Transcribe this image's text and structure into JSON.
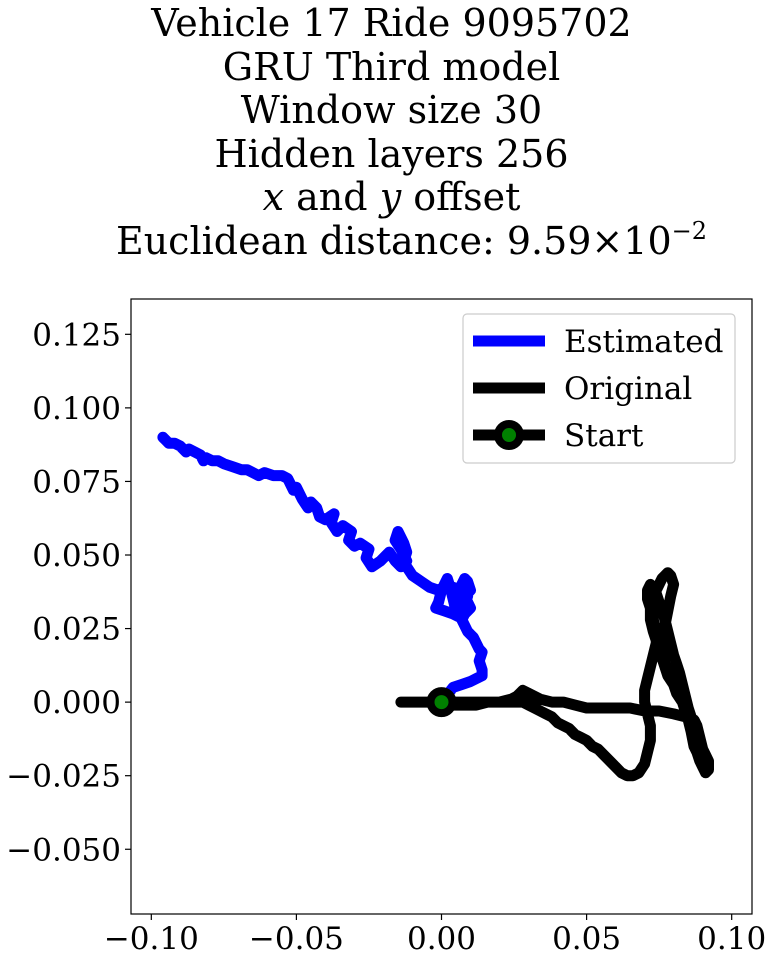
{
  "chart_data": {
    "type": "line",
    "title_lines": {
      "line1": "Vehicle 17 Ride 9095702",
      "line2": "GRU Third model",
      "line3": "Window size 30",
      "line4": "Hidden layers 256",
      "line5_var_x": "x",
      "line5_mid": " and ",
      "line5_var_y": "y",
      "line5_end": " offset",
      "line6_prefix": "Euclidean distance: 9.59×10",
      "line6_exp": "−2"
    },
    "xlabel": "",
    "ylabel": "",
    "xlim": [
      -0.107,
      0.107
    ],
    "ylim": [
      -0.072,
      0.137
    ],
    "xticks": [
      {
        "value": -0.1,
        "label": "−0.10"
      },
      {
        "value": -0.05,
        "label": "−0.05"
      },
      {
        "value": 0.0,
        "label": "0.00"
      },
      {
        "value": 0.05,
        "label": "0.05"
      },
      {
        "value": 0.1,
        "label": "0.10"
      }
    ],
    "yticks": [
      {
        "value": 0.125,
        "label": "0.125"
      },
      {
        "value": 0.1,
        "label": "0.100"
      },
      {
        "value": 0.075,
        "label": "0.075"
      },
      {
        "value": 0.05,
        "label": "0.050"
      },
      {
        "value": 0.025,
        "label": "0.025"
      },
      {
        "value": 0.0,
        "label": "0.000"
      },
      {
        "value": -0.025,
        "label": "−0.025"
      },
      {
        "value": -0.05,
        "label": "−0.050"
      }
    ],
    "grid": false,
    "legend_position": "top-right",
    "legend": [
      {
        "label": "Estimated",
        "color": "#0000ff",
        "marker": false
      },
      {
        "label": "Original",
        "color": "#000000",
        "marker": false
      },
      {
        "label": "Start",
        "color": "#000000",
        "marker": true,
        "marker_face": "#008000"
      }
    ],
    "series": [
      {
        "name": "Estimated",
        "color": "#0000ff",
        "x": [
          0.0,
          0.004,
          0.007,
          0.01,
          0.012,
          0.014,
          0.014,
          0.013,
          0.014,
          0.013,
          0.012,
          0.011,
          0.01,
          0.009,
          0.008,
          0.007,
          0.008,
          0.01,
          0.009,
          0.008,
          0.01,
          0.009,
          0.008,
          0.007,
          0.006,
          0.007,
          0.005,
          0.004,
          0.003,
          0.002,
          0.001,
          0.0,
          -0.001,
          -0.002,
          0.001,
          0.004,
          0.006,
          0.008,
          0.009,
          0.007,
          0.004,
          0.002,
          -0.001,
          -0.004,
          -0.007,
          -0.01,
          -0.012,
          -0.013,
          -0.012,
          -0.013,
          -0.014,
          -0.015,
          -0.016,
          -0.014,
          -0.013,
          -0.012,
          -0.013,
          -0.014,
          -0.016,
          -0.018,
          -0.021,
          -0.024,
          -0.026,
          -0.025,
          -0.028,
          -0.03,
          -0.032,
          -0.031,
          -0.034,
          -0.036,
          -0.038,
          -0.037,
          -0.04,
          -0.042,
          -0.043,
          -0.045,
          -0.046,
          -0.048,
          -0.049,
          -0.05,
          -0.051,
          -0.052,
          -0.053,
          -0.055,
          -0.058,
          -0.061,
          -0.063,
          -0.065,
          -0.067,
          -0.069,
          -0.072,
          -0.075,
          -0.077,
          -0.079,
          -0.081,
          -0.082,
          -0.083,
          -0.085,
          -0.087,
          -0.088,
          -0.09,
          -0.092,
          -0.094,
          -0.095,
          -0.096
        ],
        "y": [
          0.0,
          0.005,
          0.006,
          0.007,
          0.008,
          0.009,
          0.011,
          0.014,
          0.017,
          0.018,
          0.02,
          0.022,
          0.023,
          0.024,
          0.026,
          0.028,
          0.03,
          0.032,
          0.034,
          0.036,
          0.038,
          0.041,
          0.042,
          0.04,
          0.037,
          0.034,
          0.031,
          0.035,
          0.039,
          0.042,
          0.04,
          0.038,
          0.034,
          0.032,
          0.031,
          0.03,
          0.029,
          0.033,
          0.036,
          0.038,
          0.039,
          0.04,
          0.038,
          0.039,
          0.041,
          0.043,
          0.046,
          0.048,
          0.051,
          0.054,
          0.056,
          0.058,
          0.055,
          0.052,
          0.05,
          0.048,
          0.047,
          0.046,
          0.048,
          0.051,
          0.048,
          0.046,
          0.049,
          0.052,
          0.054,
          0.053,
          0.055,
          0.058,
          0.06,
          0.058,
          0.061,
          0.064,
          0.062,
          0.063,
          0.066,
          0.068,
          0.066,
          0.069,
          0.071,
          0.073,
          0.072,
          0.074,
          0.076,
          0.077,
          0.077,
          0.078,
          0.077,
          0.078,
          0.079,
          0.079,
          0.08,
          0.081,
          0.082,
          0.082,
          0.083,
          0.082,
          0.084,
          0.085,
          0.086,
          0.085,
          0.087,
          0.088,
          0.088,
          0.089,
          0.09
        ]
      },
      {
        "name": "Original",
        "color": "#000000",
        "x": [
          -0.014,
          -0.01,
          -0.006,
          -0.002,
          0.0,
          0.004,
          0.008,
          0.012,
          0.016,
          0.02,
          0.024,
          0.026,
          0.027,
          0.028,
          0.03,
          0.034,
          0.038,
          0.042,
          0.046,
          0.05,
          0.055,
          0.06,
          0.065,
          0.07,
          0.075,
          0.08,
          0.084,
          0.087,
          0.088,
          0.089,
          0.09,
          0.091,
          0.092,
          0.092,
          0.091,
          0.09,
          0.089,
          0.088,
          0.087,
          0.086,
          0.085,
          0.084,
          0.083,
          0.081,
          0.08,
          0.078,
          0.077,
          0.076,
          0.075,
          0.074,
          0.073,
          0.072,
          0.072,
          0.073,
          0.074,
          0.075,
          0.076,
          0.077,
          0.078,
          0.079,
          0.08,
          0.079,
          0.078,
          0.077,
          0.076,
          0.076,
          0.077,
          0.079,
          0.081,
          0.083,
          0.084,
          0.085,
          0.086,
          0.087,
          0.088,
          0.089,
          0.09,
          0.089,
          0.088,
          0.087,
          0.086,
          0.085,
          0.084,
          0.083,
          0.082,
          0.081,
          0.08,
          0.079,
          0.078,
          0.077,
          0.076,
          0.075,
          0.074,
          0.073,
          0.072,
          0.071,
          0.071,
          0.072,
          0.073,
          0.074,
          0.074,
          0.073,
          0.072,
          0.071,
          0.07,
          0.07,
          0.071,
          0.072,
          0.072,
          0.071,
          0.07,
          0.068,
          0.066,
          0.064,
          0.062,
          0.06,
          0.058,
          0.056,
          0.054,
          0.052,
          0.05,
          0.048,
          0.046,
          0.044,
          0.042,
          0.04,
          0.038,
          0.036,
          0.034,
          0.032,
          0.03,
          0.028,
          0.026,
          0.024,
          0.022,
          0.02,
          0.018,
          0.015,
          0.012,
          0.009,
          0.006,
          0.003,
          0.0
        ],
        "y": [
          0.0,
          0.0,
          0.0,
          0.0,
          0.0,
          -0.001,
          -0.001,
          -0.001,
          0.0,
          0.0,
          0.001,
          0.002,
          0.003,
          0.004,
          0.003,
          0.001,
          0.0,
          0.0,
          -0.001,
          -0.002,
          -0.002,
          -0.002,
          -0.002,
          -0.003,
          -0.003,
          -0.004,
          -0.005,
          -0.006,
          -0.008,
          -0.012,
          -0.016,
          -0.018,
          -0.02,
          -0.023,
          -0.024,
          -0.022,
          -0.02,
          -0.017,
          -0.015,
          -0.01,
          -0.006,
          -0.003,
          0.0,
          0.003,
          0.006,
          0.009,
          0.012,
          0.015,
          0.018,
          0.021,
          0.024,
          0.028,
          0.032,
          0.035,
          0.038,
          0.04,
          0.042,
          0.043,
          0.044,
          0.043,
          0.04,
          0.036,
          0.031,
          0.026,
          0.021,
          0.017,
          0.013,
          0.009,
          0.006,
          0.003,
          0.001,
          -0.002,
          -0.005,
          -0.008,
          -0.012,
          -0.016,
          -0.02,
          -0.018,
          -0.014,
          -0.01,
          -0.006,
          -0.002,
          0.002,
          0.006,
          0.01,
          0.013,
          0.016,
          0.02,
          0.024,
          0.028,
          0.031,
          0.034,
          0.037,
          0.039,
          0.04,
          0.038,
          0.035,
          0.032,
          0.028,
          0.024,
          0.02,
          0.016,
          0.012,
          0.008,
          0.004,
          0.0,
          -0.004,
          -0.008,
          -0.013,
          -0.017,
          -0.021,
          -0.024,
          -0.025,
          -0.025,
          -0.024,
          -0.022,
          -0.02,
          -0.018,
          -0.016,
          -0.015,
          -0.013,
          -0.012,
          -0.011,
          -0.009,
          -0.008,
          -0.007,
          -0.005,
          -0.004,
          -0.003,
          -0.002,
          -0.001,
          0.0,
          0.0,
          0.0,
          0.0,
          0.0,
          0.0,
          0.0,
          0.0,
          0.0,
          0.0,
          0.0,
          0.0
        ]
      }
    ],
    "start_point": {
      "x": 0.0,
      "y": 0.0,
      "label": "Start",
      "edge_color": "#000000",
      "face_color": "#008000"
    }
  }
}
